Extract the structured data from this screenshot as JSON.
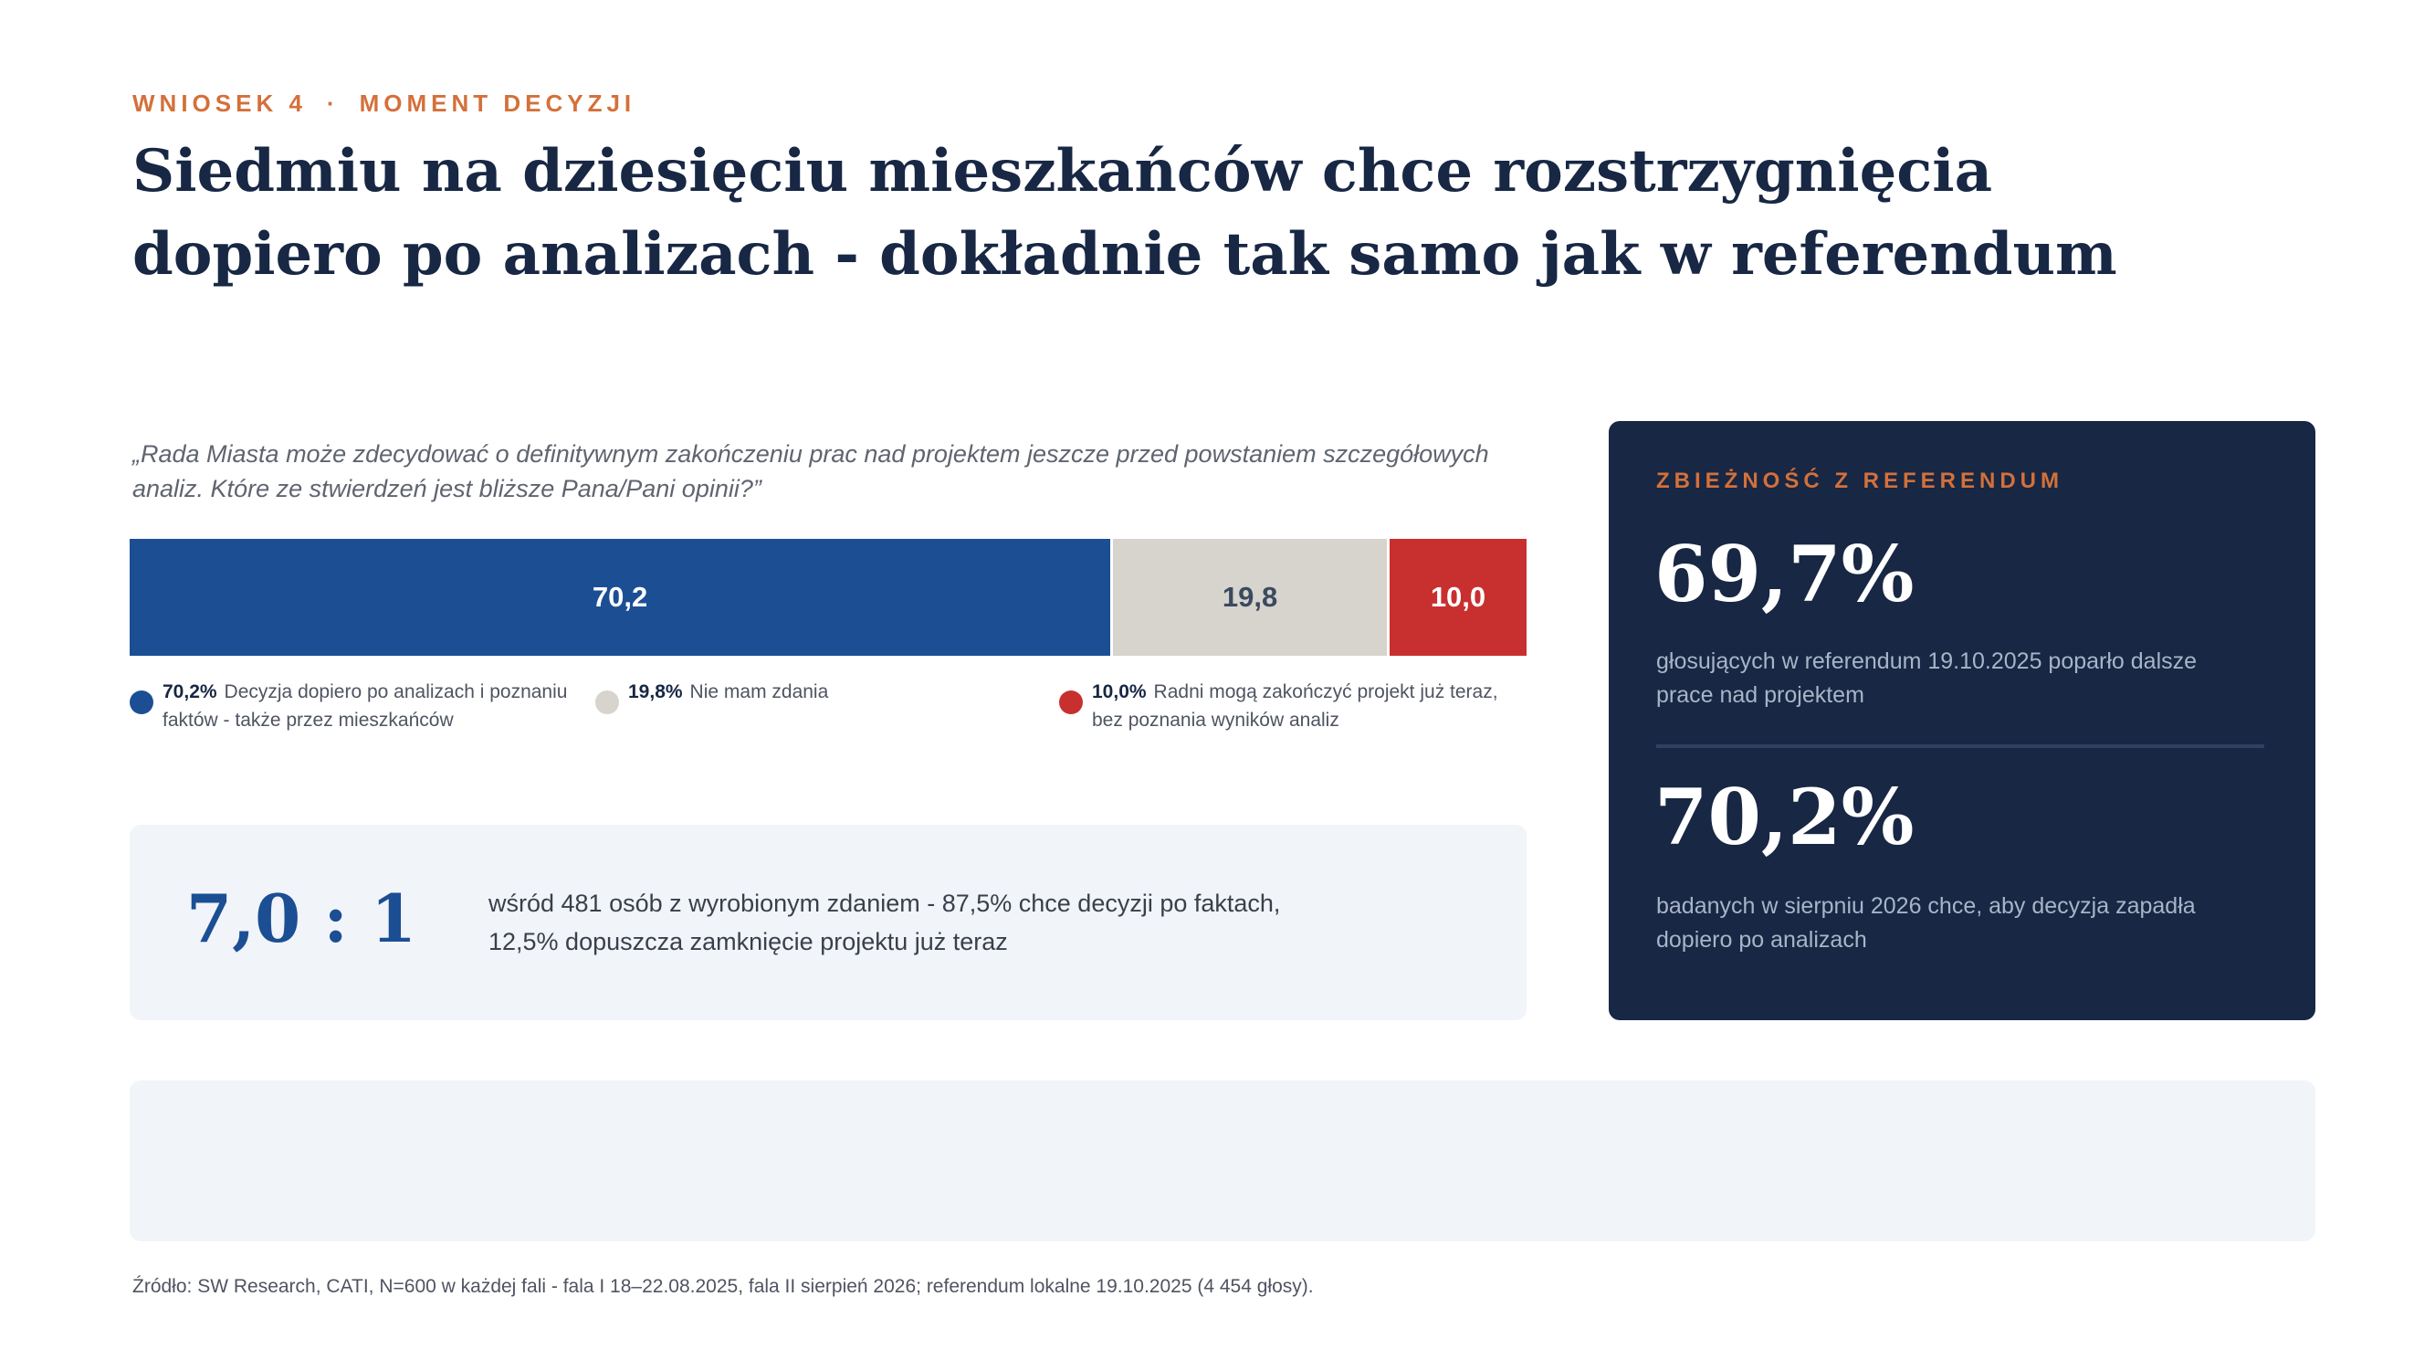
{
  "header": {
    "eyebrow_left": "WNIOSEK 4",
    "eyebrow_sep": "·",
    "eyebrow_right": "MOMENT DECYZJI",
    "title": "Siedmiu na dziesięciu mieszkańców chce rozstrzygnięcia dopiero po analizach - dokładnie tak samo jak w referendum"
  },
  "question": "„Rada Miasta może zdecydować o definitywnym zakończeniu prac nad projektem jeszcze przed powstaniem szczegółowych analiz. Które ze stwierdzeń jest bliższe Pana/Pani opinii?”",
  "chart_data": {
    "type": "bar",
    "orientation": "horizontal-stacked",
    "categories": [
      "Decyzja dopiero po analizach i poznaniu faktów - także przez mieszkańców",
      "Nie mam zdania",
      "Radni mogą zakończyć projekt już teraz, bez poznania wyników analiz"
    ],
    "values": [
      70.2,
      19.8,
      10.0
    ],
    "data_labels": [
      "70,2",
      "19,8",
      "10,0"
    ],
    "legend_values": [
      "70,2%",
      "19,8%",
      "10,0%"
    ],
    "colors": [
      "#1c4e94",
      "#d6d4cd",
      "#c8302f"
    ],
    "label_colors": [
      "#ffffff",
      "#3a4a60",
      "#ffffff"
    ],
    "legend_placement": "bottom"
  },
  "ratio": {
    "value": "7,0 : 1",
    "line1": "wśród 481 osób z wyrobionym zdaniem - 87,5% chce decyzji po faktach,",
    "line2": "12,5% dopuszcza zamknięcie projektu już teraz"
  },
  "panel": {
    "eyebrow": "ZBIEŻNOŚĆ Z REFERENDUM",
    "stat1": "69,7%",
    "stat1_desc": "głosujących w referendum 19.10.2025 poparło dalsze prace nad projektem",
    "stat2": "70,2%",
    "stat2_desc": "badanych w sierpniu 2026 chce, aby decyzja zapadła dopiero po analizach",
    "background": "#172744",
    "accent": "#d4703a"
  },
  "source": "Źródło: SW Research, CATI, N=600 w każdej fali - fala I 18–22.08.2025, fala II sierpień 2026; referendum lokalne 19.10.2025 (4 454 głosy)."
}
